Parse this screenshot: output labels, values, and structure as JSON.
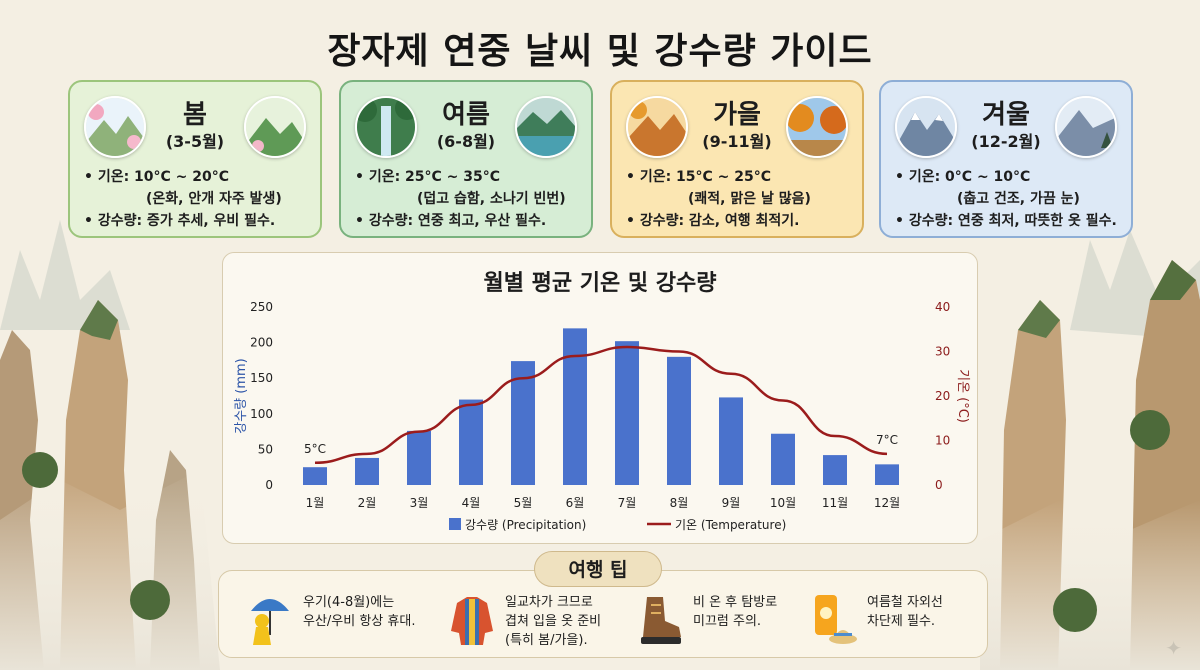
{
  "title": "장자제 연중 날씨 및 강수량 가이드",
  "seasons": [
    {
      "name": "봄",
      "months": "(3-5월)",
      "temp": "• 기온: 10°C ~ 20°C",
      "temp_note": "(온화, 안개 자주 발생)",
      "rain": "• 강수량: 증가 추세, 우비 필수.",
      "colors": {
        "bg": "#e6f2d8",
        "accent": "#9cc57c"
      },
      "icons": [
        "cherry-blossom-mountain-icon",
        "green-mountain-icon"
      ]
    },
    {
      "name": "여름",
      "months": "(6-8월)",
      "temp": "• 기온: 25°C ~ 35°C",
      "temp_note": "(덥고 습함, 소나기 빈번)",
      "rain": "• 강수량: 연중 최고, 우산 필수.",
      "colors": {
        "bg": "#d6edd5",
        "accent": "#79b27e"
      },
      "icons": [
        "forest-waterfall-icon",
        "rainy-lake-icon"
      ]
    },
    {
      "name": "가을",
      "months": "(9-11월)",
      "temp": "• 기온: 15°C ~ 25°C",
      "temp_note": "(쾌적, 맑은 날 많음)",
      "rain": "• 강수량: 감소, 여행 최적기.",
      "colors": {
        "bg": "#fbe6b2",
        "accent": "#d9b05d"
      },
      "icons": [
        "autumn-valley-icon",
        "autumn-tree-icon"
      ]
    },
    {
      "name": "겨울",
      "months": "(12-2월)",
      "temp": "• 기온: 0°C ~ 10°C",
      "temp_note": "(춥고 건조, 가끔 눈)",
      "rain": "• 강수량: 연중 최저, 따뜻한 옷 필수.",
      "colors": {
        "bg": "#dde9f6",
        "accent": "#8eaed6"
      },
      "icons": [
        "snowy-peaks-icon",
        "snowy-pine-icon"
      ]
    }
  ],
  "chart_data": {
    "type": "bar",
    "title": "월별 평균 기온 및 강수량",
    "categories": [
      "1월",
      "2월",
      "3월",
      "4월",
      "5월",
      "6월",
      "7월",
      "8월",
      "9월",
      "10월",
      "11월",
      "12월"
    ],
    "series": [
      {
        "name": "강수량 (Precipitation)",
        "type": "bar",
        "axis": "left",
        "color": "#4a72cc",
        "values": [
          25,
          38,
          76,
          120,
          174,
          220,
          202,
          180,
          123,
          72,
          42,
          29
        ]
      },
      {
        "name": "기온 (Temperature)",
        "type": "line",
        "axis": "right",
        "color": "#9b1c1c",
        "values": [
          5,
          7,
          12,
          18,
          24,
          29,
          31,
          30,
          25,
          19,
          11,
          7
        ]
      }
    ],
    "ylabel": "강수량 (mm)",
    "y2label": "기온 (°C)",
    "ylim": [
      0,
      250
    ],
    "y2lim": [
      0,
      40
    ],
    "yticks": [
      "0",
      "50",
      "100",
      "150",
      "200",
      "250"
    ],
    "y2ticks": [
      "0",
      "10",
      "20",
      "30",
      "40"
    ],
    "annotations": [
      "5°C",
      "7°C"
    ],
    "grid": false,
    "legend_position": "bottom"
  },
  "tips": {
    "title": "여행 팁",
    "items": [
      {
        "icon": "raincoat-umbrella-icon",
        "text": "우기(4-8월)에는\n우산/우비 항상 휴대."
      },
      {
        "icon": "layered-jacket-icon",
        "text": "일교차가 크므로\n겹쳐 입을 옷 준비\n(특히 봄/가을)."
      },
      {
        "icon": "hiking-boot-icon",
        "text": "비 온 후 탐방로\n미끄럼 주의."
      },
      {
        "icon": "sunscreen-hat-icon",
        "text": "여름철 자외선\n차단제 필수."
      }
    ]
  }
}
